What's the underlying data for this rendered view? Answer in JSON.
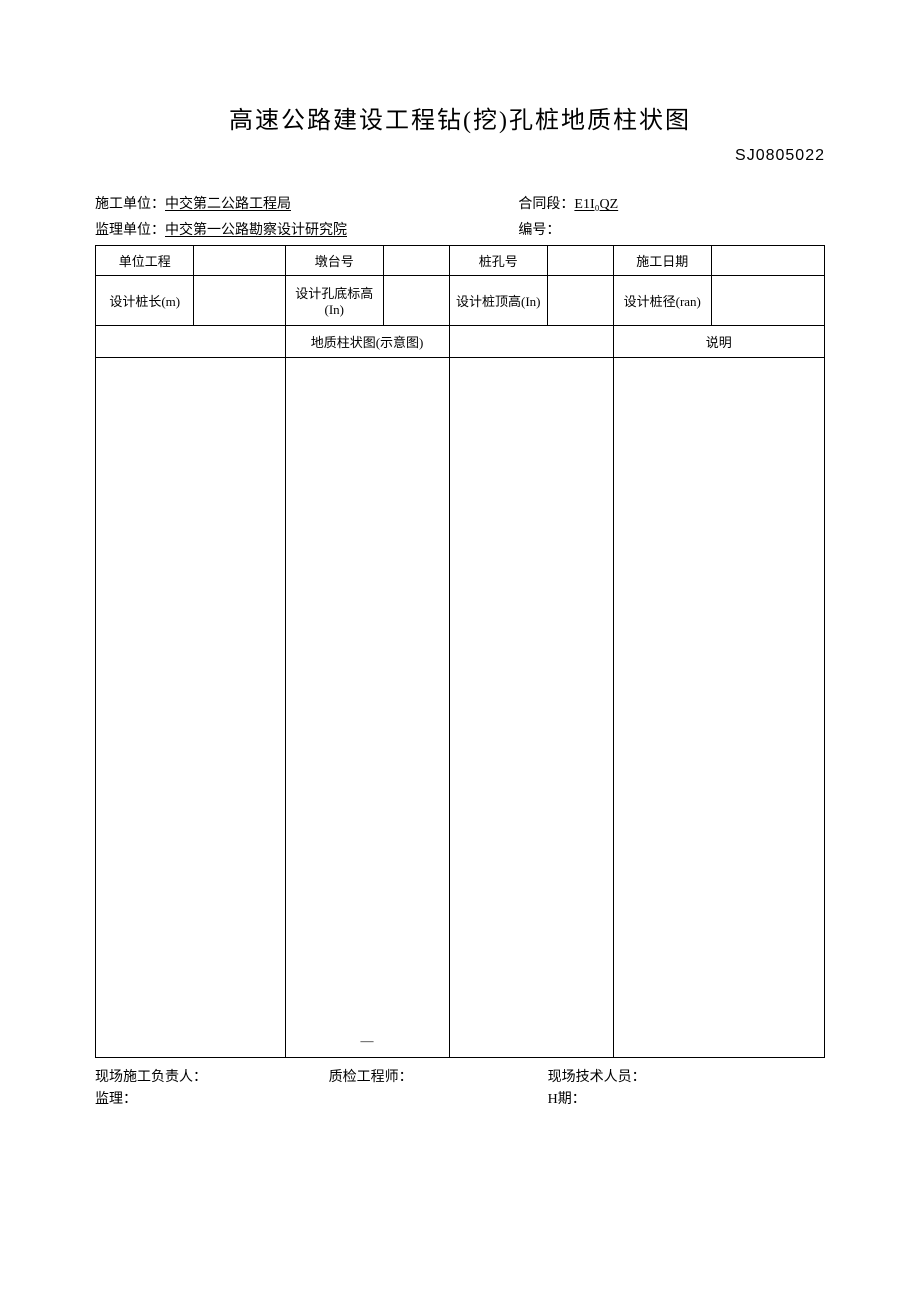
{
  "title": "高速公路建设工程钻(挖)孔桩地质柱状图",
  "doc_code": "SJ0805022",
  "meta": {
    "construction_unit_label": "施工单位：",
    "construction_unit_value": "中交第二公路工程局",
    "contract_section_label": "合同段：",
    "contract_section_value": "E1I₀QZ",
    "supervision_unit_label": "监理单位：",
    "supervision_unit_value": "中交第一公路勘察设计研究院",
    "serial_no_label": "编号："
  },
  "table": {
    "row1": {
      "c1": "单位工程",
      "c2": "",
      "c3": "墩台号",
      "c4": "",
      "c5": "桩孔号",
      "c6": "",
      "c7": "施工日期",
      "c8": ""
    },
    "row2": {
      "c1": "设计桩长(m)",
      "c2": "",
      "c3": "设计孔底标高(In)",
      "c4": "",
      "c5": "设计桩顶高(In)",
      "c6": "",
      "c7": "设计桩径(ran)",
      "c8": ""
    },
    "row3": {
      "merged_a": "地质柱状图(示意图)",
      "merged_b": "说明"
    },
    "body_dash": "—"
  },
  "footer": {
    "site_manager": "现场施工负责人：",
    "qc_engineer": "质检工程师：",
    "site_tech": "现场技术人员：",
    "supervisor": "监理：",
    "date": "H期："
  }
}
